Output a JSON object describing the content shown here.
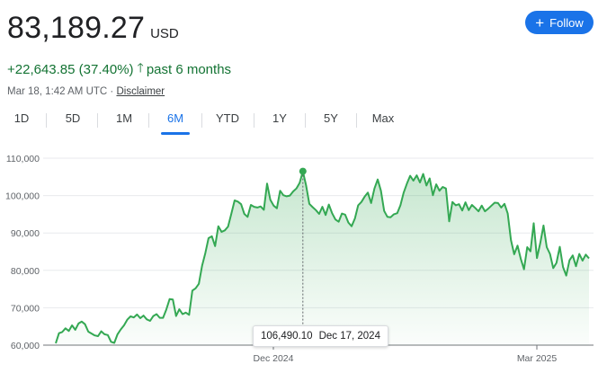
{
  "quote": {
    "price": "83,189.27",
    "currency": "USD"
  },
  "follow_button": {
    "label": "Follow",
    "icon": "plus-icon"
  },
  "change": {
    "amount_percent": "+22,643.85 (37.40%)",
    "direction_icon": "arrow-up-icon",
    "period": "past 6 months"
  },
  "meta": {
    "timestamp": "Mar 18, 1:42 AM UTC",
    "separator": "·",
    "disclaimer": "Disclaimer"
  },
  "range_tabs": [
    "1D",
    "5D",
    "1M",
    "6M",
    "YTD",
    "1Y",
    "5Y",
    "Max"
  ],
  "active_tab": "6M",
  "colors": {
    "accent": "#1a73e8",
    "up": "#137333",
    "line": "#34a853",
    "fill": "#e6f4ea"
  },
  "tooltip": {
    "value": "106,490.10",
    "date": "Dec 17, 2024"
  },
  "chart_data": {
    "type": "area",
    "y_ticks": [
      60000,
      70000,
      80000,
      90000,
      100000,
      110000
    ],
    "y_tick_labels": [
      "60,000",
      "70,000",
      "80,000",
      "90,000",
      "100,000",
      "110,000"
    ],
    "ylim": [
      60000,
      110000
    ],
    "x_tick_labels": [
      "Dec 2024",
      "Mar 2025"
    ],
    "grid": true,
    "highlight": {
      "value": 106490.1,
      "date": "Dec 17, 2024"
    },
    "series": [
      {
        "values": [
          60500,
          63200,
          63500,
          64500,
          63800,
          65300,
          64100,
          65800,
          66300,
          65600,
          63600,
          63100,
          62600,
          62400,
          63700,
          62900,
          62700,
          60900,
          60600,
          62900,
          64200,
          65300,
          66800,
          67700,
          67400,
          68200,
          67200,
          67900,
          66900,
          66500,
          67800,
          68300,
          67300,
          67300,
          69500,
          72300,
          72200,
          67800,
          69600,
          68300,
          68700,
          68100,
          74600,
          75200,
          76400,
          81200,
          84600,
          88600,
          89100,
          86500,
          91800,
          90300,
          90700,
          91700,
          95200,
          98700,
          98400,
          97700,
          95100,
          94300,
          97500,
          97000,
          96800,
          97100,
          96200,
          103200,
          98900,
          97300,
          96600,
          101300,
          100100,
          99800,
          100000,
          101100,
          101900,
          103400,
          106500,
          102700,
          97800,
          96900,
          96100,
          95100,
          97000,
          94800,
          97600,
          95300,
          93600,
          93000,
          95200,
          94900,
          92800,
          91800,
          93900,
          97400,
          98300,
          99700,
          100800,
          98000,
          101900,
          104300,
          101300,
          95900,
          94300,
          94200,
          95000,
          95300,
          97400,
          100800,
          103200,
          105300,
          104000,
          105400,
          103500,
          105800,
          102700,
          104600,
          100100,
          103000,
          101300,
          102300,
          101900,
          93100,
          98300,
          97400,
          97700,
          96000,
          98200,
          96100,
          97500,
          96700,
          95800,
          97300,
          95800,
          96500,
          97300,
          98100,
          98000,
          96800,
          97800,
          95200,
          88100,
          84300,
          86600,
          83100,
          80300,
          86200,
          85100,
          92600,
          83300,
          87300,
          92000,
          86200,
          84400,
          80600,
          82000,
          86300,
          80900,
          78600,
          82700,
          84000,
          81100,
          84400,
          82600,
          84200,
          83200
        ]
      }
    ]
  }
}
